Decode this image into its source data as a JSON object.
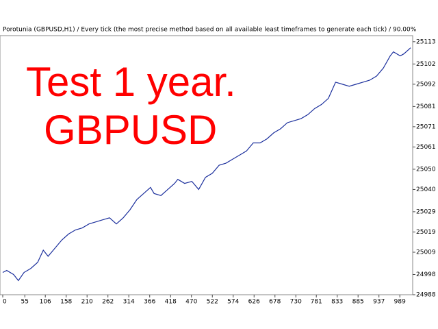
{
  "chart_data": {
    "type": "line",
    "title": "Porotunia (GBPUSD,H1) / Every tick (the most precise method based on all available least timeframes to generate each tick) / 90.00%",
    "annotations": [
      "Test 1 year.",
      "GBPUSD"
    ],
    "x": [
      0,
      10,
      27,
      39,
      53,
      70,
      87,
      101,
      113,
      130,
      147,
      164,
      181,
      198,
      215,
      232,
      249,
      266,
      283,
      300,
      317,
      334,
      351,
      368,
      377,
      394,
      411,
      428,
      436,
      453,
      471,
      488,
      505,
      522,
      539,
      556,
      573,
      590,
      607,
      624,
      641,
      658,
      675,
      692,
      709,
      726,
      743,
      760,
      777,
      794,
      811,
      829,
      846,
      863,
      880,
      897,
      914,
      931,
      948,
      965,
      973,
      990,
      999,
      1016
    ],
    "series": [
      {
        "color": "#1a2e9c",
        "values": [
          24999,
          25000,
          24998,
          24995,
          24999,
          25001,
          25004,
          25010,
          25007,
          25011,
          25015,
          25018,
          25020,
          25021,
          25023,
          25024,
          25025,
          25026,
          25023,
          25026,
          25030,
          25035,
          25038,
          25041,
          25038,
          25037,
          25040,
          25043,
          25045,
          25043,
          25044,
          25040,
          25046,
          25048,
          25052,
          25053,
          25055,
          25057,
          25059,
          25063,
          25063,
          25065,
          25068,
          25070,
          25073,
          25074,
          25075,
          25077,
          25080,
          25082,
          25085,
          25093,
          25092,
          25091,
          25092,
          25093,
          25094,
          25096,
          25100,
          25106,
          25108,
          25106,
          25107,
          25110
        ]
      }
    ],
    "xlim": [
      0,
      1021
    ],
    "ylim": [
      24988,
      25116
    ],
    "xticks": [
      0,
      55,
      106,
      158,
      210,
      262,
      314,
      366,
      418,
      470,
      522,
      574,
      626,
      678,
      730,
      781,
      833,
      885,
      937,
      989
    ],
    "yticks": [
      24988,
      24998,
      25009,
      25019,
      25029,
      25040,
      25050,
      25061,
      25071,
      25081,
      25092,
      25102,
      25113
    ]
  }
}
